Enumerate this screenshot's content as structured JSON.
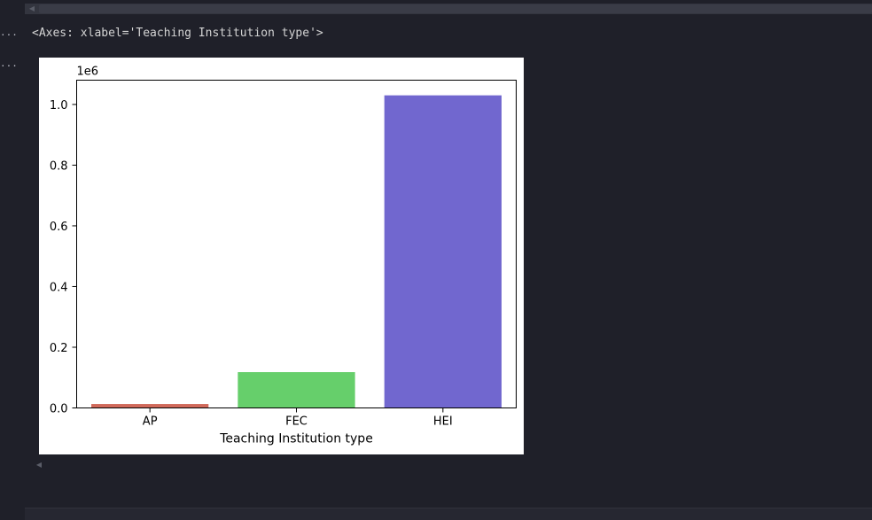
{
  "output": {
    "text": "<Axes: xlabel='Teaching Institution type'>",
    "dots": "..."
  },
  "colors": {
    "background": "#1f2029",
    "bar_ap": "#d0695a",
    "bar_fec": "#66cf6b",
    "bar_hei": "#7167cf"
  },
  "chart_data": {
    "type": "bar",
    "categories": [
      "AP",
      "FEC",
      "HEI"
    ],
    "values": [
      13000,
      118000,
      1030000
    ],
    "colors": [
      "#d0695a",
      "#66cf6b",
      "#7167cf"
    ],
    "xlabel": "Teaching Institution type",
    "ylabel": "",
    "offset_text": "1e6",
    "ylim": [
      0,
      1080000
    ],
    "yticks": [
      0,
      200000,
      400000,
      600000,
      800000,
      1000000
    ],
    "ytick_labels": [
      "0.0",
      "0.2",
      "0.4",
      "0.6",
      "0.8",
      "1.0"
    ],
    "grid": false
  }
}
